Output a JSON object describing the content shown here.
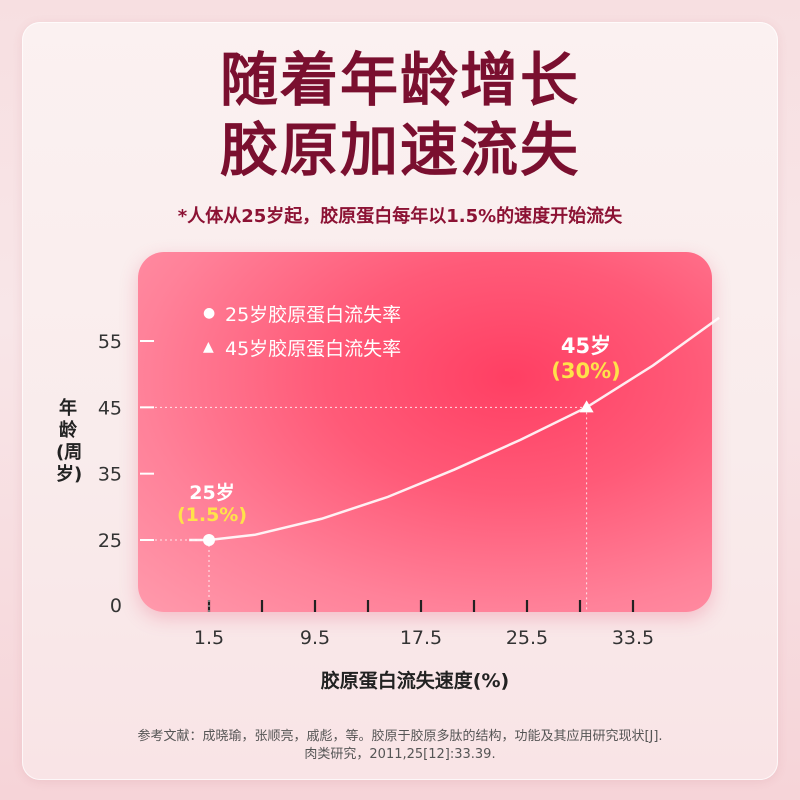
{
  "headline": {
    "line1": "随着年龄增长",
    "line2": "胶原加速流失"
  },
  "subtitle": "*人体从25岁起，胶原蛋白每年以1.5%的速度开始流失",
  "colors": {
    "title": "#7a0f2f",
    "panel": "#ff4d6d",
    "highlight": "#ffe24a"
  },
  "chart_data": {
    "type": "line",
    "xlabel": "胶原蛋白流失速度(%)",
    "ylabel": "年龄(周岁)",
    "x_ticks": [
      "1.5",
      "9.5",
      "17.5",
      "25.5",
      "33.5"
    ],
    "y_ticks": [
      "0",
      "25",
      "35",
      "45",
      "55"
    ],
    "legend": [
      {
        "marker": "circle",
        "label": "25岁胶原蛋白流失率"
      },
      {
        "marker": "triangle",
        "label": "45岁胶原蛋白流失率"
      }
    ],
    "points": [
      {
        "x": 1.5,
        "y": 25,
        "marker": "circle",
        "label_age": "25岁",
        "label_pct": "(1.5%)"
      },
      {
        "x": 30,
        "y": 45,
        "marker": "triangle",
        "label_age": "45岁",
        "label_pct": "(30%)"
      }
    ],
    "curve": [
      [
        0,
        25
      ],
      [
        1.5,
        25
      ],
      [
        5,
        25.8
      ],
      [
        10,
        28.2
      ],
      [
        15,
        31.5
      ],
      [
        20,
        35.6
      ],
      [
        25,
        40.1
      ],
      [
        30,
        45
      ],
      [
        35,
        51.3
      ],
      [
        40,
        58.5
      ]
    ]
  },
  "reference": {
    "line1": "参考文献：成晓瑜，张顺亮，戚彪，等。胶原于胶原多肽的结构，功能及其应用研究现状[J].",
    "line2": "肉类研究，2011,25[12]:33.39."
  }
}
